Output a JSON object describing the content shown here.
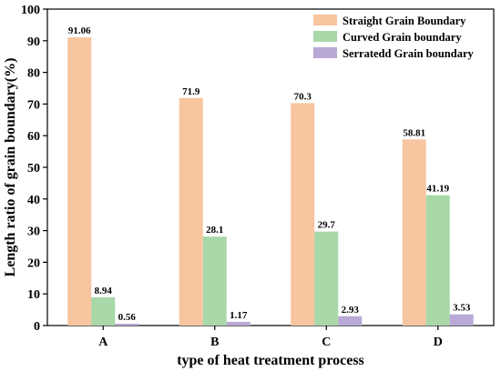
{
  "chart_data": {
    "type": "bar",
    "title": "",
    "xlabel": "type of heat treatment process",
    "ylabel": "Length ratio of grain boundary(%)",
    "categories": [
      "A",
      "B",
      "C",
      "D"
    ],
    "ylim": [
      0,
      100
    ],
    "yticks": [
      0,
      10,
      20,
      30,
      40,
      50,
      60,
      70,
      80,
      90,
      100
    ],
    "grid": false,
    "legend_position": "top-right",
    "series": [
      {
        "name": "Straight Grain Boundary",
        "values": [
          91.06,
          71.9,
          70.3,
          58.81
        ],
        "labels": [
          "91.06",
          "71.9",
          "70.3",
          "58.81"
        ],
        "color": "#F7C59F"
      },
      {
        "name": "Curved Grain boundary",
        "values": [
          8.94,
          28.1,
          29.7,
          41.19
        ],
        "labels": [
          "8.94",
          "28.1",
          "29.7",
          "41.19"
        ],
        "color": "#A8D8A8"
      },
      {
        "name": "Serratedd Grain boundary",
        "values": [
          0.56,
          1.17,
          2.93,
          3.53
        ],
        "labels": [
          "0.56",
          "1.17",
          "2.93",
          "3.53"
        ],
        "color": "#B9A9D6"
      }
    ]
  }
}
